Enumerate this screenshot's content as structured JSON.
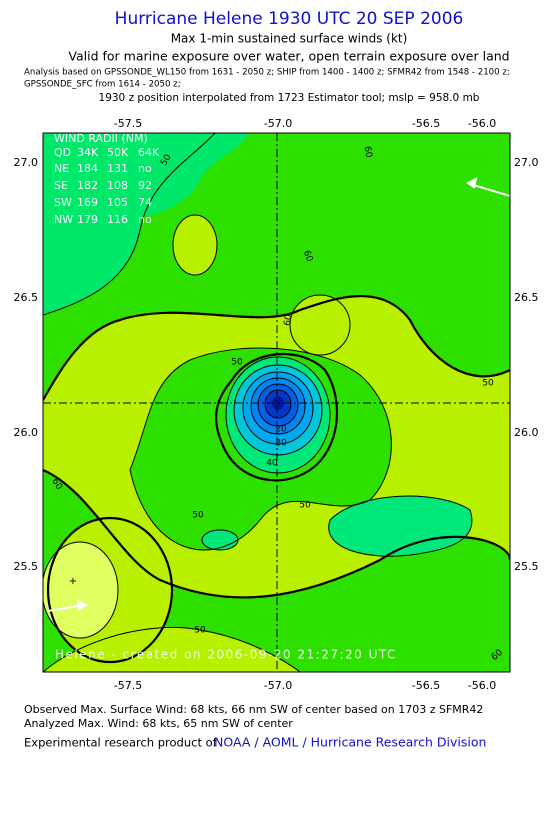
{
  "header": {
    "title": "Hurricane Helene 1930 UTC 20 SEP 2006",
    "subtitle": "Max 1-min sustained surface winds (kt)",
    "validity": "Valid for marine exposure over water, open terrain exposure over land",
    "analysis_line1": "Analysis based on  GPSSONDE_WL150 from 1631 - 2050 z;  SHIP from 1400 - 1400 z;  SFMR42 from 1548 - 2100 z;",
    "analysis_line2": "GPSSONDE_SFC from 1614 - 2050 z;",
    "position_note": "1930 z position interpolated from 1723 Estimator tool; mslp = 958.0 mb"
  },
  "map": {
    "lon_labels": [
      "-57.5",
      "-57.0",
      "-56.5",
      "-56.0"
    ],
    "lat_labels": [
      "27.0",
      "26.5",
      "26.0",
      "25.5"
    ],
    "wind_radii": {
      "title": "WIND RADII (NM)",
      "header": [
        "QD",
        "34K",
        "50K",
        "64K"
      ],
      "rows": [
        [
          "NE",
          "184",
          "131",
          "no"
        ],
        [
          "SE",
          "182",
          "108",
          "92"
        ],
        [
          "SW",
          "169",
          "105",
          "74"
        ],
        [
          "NW",
          "179",
          "116",
          "no"
        ]
      ]
    },
    "contour_labels": [
      "50",
      "60",
      "60",
      "60",
      "50",
      "50",
      "20",
      "30",
      "40",
      "50",
      "60",
      "50",
      "50",
      "60"
    ],
    "credit": "Helene - created on 2006-09-20 21:27:20 UTC"
  },
  "footer": {
    "observed": "Observed Max. Surface Wind: 68 kts, 66 nm SW of center based on 1703 z SFMR42",
    "analyzed": "Analyzed Max. Wind: 68 kts, 65 nm SW of center",
    "product_prefix": "Experimental research product of",
    "product_link": "NOAA / AOML / Hurricane Research Division"
  }
}
